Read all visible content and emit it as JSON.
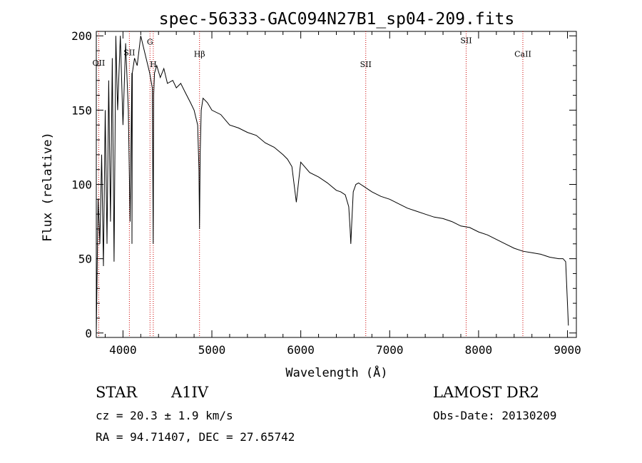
{
  "chart_data": {
    "type": "line",
    "title": "spec-56333-GAC094N27B1_sp04-209.fits",
    "xlabel": "Wavelength (Å)",
    "ylabel": "Flux (relative)",
    "xlim": [
      3700,
      9100
    ],
    "ylim": [
      -3,
      203
    ],
    "x_ticks": [
      4000,
      5000,
      6000,
      7000,
      8000,
      9000
    ],
    "y_ticks": [
      0,
      50,
      100,
      150,
      200
    ],
    "grid": false,
    "line_color": "#000000",
    "marker_color": "#cc0000",
    "lines": [
      {
        "label": "OII",
        "wavelength": 3727,
        "label_y": 180
      },
      {
        "label": "SII",
        "wavelength": 4072,
        "label_y": 187
      },
      {
        "label": "G",
        "wavelength": 4304,
        "label_y": 194
      },
      {
        "label": "H",
        "wavelength": 4341,
        "label_y": 179
      },
      {
        "label": "Hβ",
        "wavelength": 4861,
        "label_y": 186
      },
      {
        "label": "SII",
        "wavelength": 6731,
        "label_y": 179
      },
      {
        "label": "SII",
        "wavelength": 7860,
        "label_y": 195
      },
      {
        "label": "CaII",
        "wavelength": 8498,
        "label_y": 186
      }
    ],
    "series": [
      {
        "x": [
          3700,
          3720,
          3740,
          3760,
          3780,
          3800,
          3820,
          3840,
          3860,
          3880,
          3900,
          3920,
          3940,
          3970,
          4000,
          4030,
          4060,
          4080,
          4100,
          4101,
          4105,
          4130,
          4160,
          4200,
          4240,
          4280,
          4300,
          4330,
          4340,
          4345,
          4355,
          4380,
          4420,
          4460,
          4500,
          4560,
          4600,
          4650,
          4700,
          4760,
          4800,
          4840,
          4855,
          4861,
          4868,
          4880,
          4900,
          4950,
          5000,
          5100,
          5200,
          5300,
          5400,
          5500,
          5600,
          5700,
          5800,
          5850,
          5900,
          5950,
          6000,
          6100,
          6200,
          6300,
          6400,
          6450,
          6500,
          6540,
          6555,
          6563,
          6572,
          6590,
          6620,
          6650,
          6700,
          6800,
          6900,
          7000,
          7100,
          7200,
          7300,
          7400,
          7500,
          7600,
          7700,
          7800,
          7900,
          8000,
          8100,
          8200,
          8300,
          8400,
          8500,
          8600,
          8700,
          8800,
          8900,
          8950,
          8980,
          9000,
          9010
        ],
        "y": [
          0,
          90,
          60,
          120,
          45,
          150,
          60,
          170,
          75,
          185,
          48,
          200,
          150,
          200,
          140,
          195,
          150,
          75,
          175,
          60,
          175,
          185,
          180,
          200,
          190,
          180,
          175,
          165,
          60,
          160,
          175,
          180,
          172,
          178,
          168,
          170,
          165,
          168,
          162,
          155,
          150,
          140,
          110,
          70,
          120,
          150,
          158,
          155,
          150,
          147,
          140,
          138,
          135,
          133,
          128,
          125,
          120,
          117,
          112,
          88,
          115,
          108,
          105,
          101,
          96,
          95,
          93,
          85,
          70,
          60,
          72,
          95,
          100,
          101,
          99,
          95,
          92,
          90,
          87,
          84,
          82,
          80,
          78,
          77,
          75,
          72,
          71,
          68,
          66,
          63,
          60,
          57,
          55,
          54,
          53,
          51,
          50,
          50,
          48,
          20,
          5
        ]
      }
    ]
  },
  "info": {
    "object_type": "STAR",
    "subclass": "A1IV",
    "survey": "LAMOST DR2",
    "cz": "cz = 20.3 ± 1.9 km/s",
    "obs_date": "Obs-Date: 20130209",
    "coords": "RA =  94.71407, DEC =  27.65742"
  }
}
